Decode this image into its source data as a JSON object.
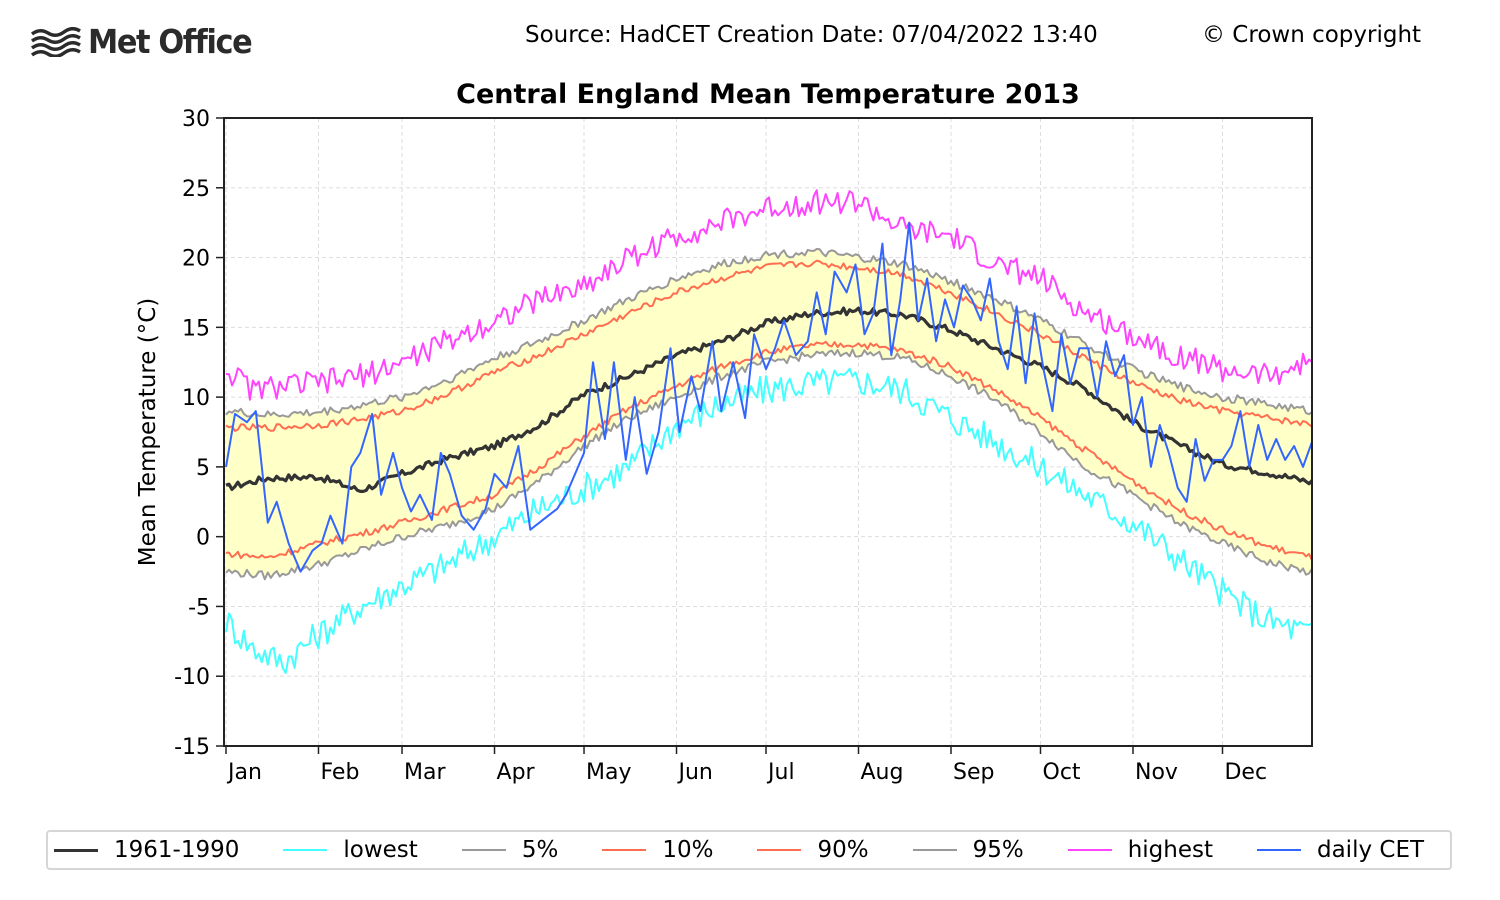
{
  "header": {
    "logo_text": "Met Office",
    "source_text": "Source: HadCET  Creation Date: 07/04/2022 13:40",
    "copyright_text": "© Crown copyright"
  },
  "chart_data": {
    "type": "line",
    "title": "Central England Mean Temperature 2013",
    "xlabel": "",
    "ylabel": "Mean Temperature (°C)",
    "ylim": [
      -15,
      30
    ],
    "xlim_day_of_year": [
      1,
      365
    ],
    "yticks": [
      30,
      25,
      20,
      15,
      10,
      5,
      0,
      -5,
      -10,
      -15
    ],
    "ytick_labels": [
      "30",
      "25",
      "20",
      "15",
      "10",
      "5",
      "0",
      "-5",
      "-10",
      "-15"
    ],
    "xtick_labels": [
      "Jan",
      "Feb",
      "Mar",
      "Apr",
      "May",
      "Jun",
      "Jul",
      "Aug",
      "Sep",
      "Oct",
      "Nov",
      "Dec"
    ],
    "xtick_days": [
      1,
      32,
      60,
      91,
      121,
      152,
      182,
      213,
      244,
      274,
      305,
      335
    ],
    "grid": true,
    "legend_position": "bottom",
    "shaded_band": {
      "between": [
        "5%",
        "95%"
      ],
      "color": "#ffffc8"
    },
    "series": [
      {
        "name": "1961-1990",
        "color": "#333333",
        "anchor_days": [
          1,
          15,
          32,
          46,
          60,
          75,
          91,
          106,
          121,
          136,
          152,
          167,
          182,
          197,
          213,
          228,
          244,
          259,
          274,
          289,
          305,
          320,
          335,
          350,
          365
        ],
        "values": [
          3.5,
          4.2,
          4.3,
          3.3,
          4.5,
          5.6,
          6.5,
          8.0,
          10.2,
          11.5,
          13.0,
          14.0,
          15.3,
          16.0,
          16.2,
          15.9,
          14.8,
          13.5,
          12.2,
          10.6,
          8.2,
          6.6,
          5.2,
          4.6,
          3.9
        ]
      },
      {
        "name": "lowest",
        "color": "#44ffff",
        "anchor_days": [
          1,
          10,
          20,
          32,
          46,
          60,
          75,
          91,
          106,
          121,
          136,
          152,
          167,
          182,
          197,
          213,
          228,
          244,
          259,
          274,
          289,
          305,
          320,
          335,
          350,
          365
        ],
        "values": [
          -6,
          -8,
          -9,
          -7,
          -5,
          -3.5,
          -2,
          0,
          2,
          3.5,
          5,
          8,
          9.5,
          10.5,
          11,
          11.2,
          10.5,
          8.5,
          6.8,
          5,
          3,
          1,
          -1.5,
          -4,
          -6,
          -7
        ]
      },
      {
        "name": "5%",
        "color": "#999999",
        "anchor_days": [
          1,
          15,
          32,
          46,
          60,
          75,
          91,
          106,
          121,
          136,
          152,
          167,
          182,
          197,
          213,
          228,
          244,
          259,
          274,
          289,
          305,
          320,
          335,
          350,
          365
        ],
        "values": [
          -2.5,
          -2.8,
          -2.0,
          -1.0,
          0.0,
          0.8,
          2.0,
          4.0,
          6.5,
          8.5,
          10.0,
          11.5,
          12.5,
          13.0,
          13.2,
          12.8,
          11.5,
          9.8,
          7.5,
          5.0,
          3.0,
          1.0,
          -0.5,
          -1.8,
          -2.6
        ]
      },
      {
        "name": "10%",
        "color": "#ff6e50",
        "anchor_days": [
          1,
          15,
          32,
          46,
          60,
          75,
          91,
          106,
          121,
          136,
          152,
          167,
          182,
          197,
          213,
          228,
          244,
          259,
          274,
          289,
          305,
          320,
          335,
          350,
          365
        ],
        "values": [
          -1.2,
          -1.5,
          -0.5,
          0.2,
          1.0,
          2.0,
          3.0,
          5.0,
          7.2,
          9.2,
          10.8,
          12.2,
          13.2,
          13.7,
          13.8,
          13.3,
          12.2,
          10.5,
          8.5,
          6.2,
          4.0,
          2.0,
          0.5,
          -0.7,
          -1.5
        ]
      },
      {
        "name": "90%",
        "color": "#ff6e50",
        "anchor_days": [
          1,
          15,
          32,
          46,
          60,
          75,
          91,
          106,
          121,
          136,
          152,
          167,
          182,
          197,
          213,
          228,
          244,
          259,
          274,
          289,
          305,
          320,
          335,
          350,
          365
        ],
        "values": [
          7.8,
          7.8,
          8.0,
          8.4,
          9.0,
          10.2,
          11.8,
          13.0,
          14.5,
          16.0,
          17.5,
          18.5,
          19.3,
          19.6,
          19.3,
          18.8,
          17.5,
          16.0,
          14.5,
          12.8,
          11.0,
          9.8,
          9.0,
          8.5,
          8.0
        ]
      },
      {
        "name": "95%",
        "color": "#999999",
        "anchor_days": [
          1,
          15,
          32,
          46,
          60,
          75,
          91,
          106,
          121,
          136,
          152,
          167,
          182,
          197,
          213,
          228,
          244,
          259,
          274,
          289,
          305,
          320,
          335,
          350,
          365
        ],
        "values": [
          9.0,
          8.7,
          8.9,
          9.4,
          10.0,
          11.2,
          12.8,
          14.0,
          15.5,
          17.0,
          18.5,
          19.5,
          20.2,
          20.4,
          20.0,
          19.5,
          18.3,
          17.0,
          15.5,
          13.8,
          12.0,
          10.8,
          10.0,
          9.5,
          9.0
        ]
      },
      {
        "name": "highest",
        "color": "#ff44ff",
        "anchor_days": [
          1,
          10,
          20,
          32,
          46,
          60,
          75,
          91,
          106,
          121,
          136,
          152,
          167,
          182,
          197,
          213,
          228,
          244,
          259,
          274,
          289,
          305,
          320,
          335,
          350,
          365
        ],
        "values": [
          12,
          10.5,
          10.8,
          11.0,
          11.5,
          12.5,
          14.0,
          15.5,
          17.0,
          18.0,
          20.0,
          21.5,
          22.5,
          23.5,
          24.0,
          24.0,
          22.0,
          21.5,
          19.5,
          18.5,
          16.0,
          14.5,
          13.0,
          12.0,
          11.5,
          12.5
        ]
      },
      {
        "name": "daily CET",
        "color": "#3366ff",
        "anchor_days": [
          1,
          4,
          8,
          11,
          15,
          18,
          22,
          26,
          30,
          33,
          36,
          40,
          43,
          46,
          50,
          53,
          57,
          60,
          63,
          66,
          70,
          73,
          76,
          80,
          84,
          88,
          91,
          95,
          99,
          103,
          106,
          109,
          112,
          115,
          118,
          121,
          124,
          128,
          131,
          135,
          138,
          142,
          146,
          150,
          153,
          157,
          160,
          164,
          167,
          171,
          175,
          178,
          182,
          185,
          188,
          192,
          196,
          199,
          202,
          205,
          209,
          212,
          215,
          218,
          221,
          224,
          227,
          230,
          233,
          236,
          239,
          242,
          245,
          248,
          251,
          254,
          257,
          260,
          263,
          266,
          269,
          272,
          275,
          278,
          281,
          284,
          287,
          290,
          293,
          296,
          299,
          302,
          305,
          308,
          311,
          314,
          317,
          320,
          323,
          326,
          329,
          332,
          335,
          338,
          341,
          344,
          347,
          350,
          353,
          356,
          359,
          362,
          365
        ],
        "values": [
          5,
          8.8,
          8.2,
          9.0,
          1.0,
          2.5,
          -0.5,
          -2.5,
          -1.0,
          -0.5,
          1.5,
          -0.5,
          5.0,
          6.0,
          8.8,
          3.0,
          6.0,
          3.5,
          1.8,
          3.0,
          1.2,
          6.0,
          4.5,
          1.5,
          0.5,
          2.0,
          4.5,
          3.5,
          6.5,
          0.5,
          1.0,
          1.5,
          2.0,
          3.0,
          4.5,
          6.0,
          12.5,
          7.0,
          12.5,
          5.5,
          10.0,
          4.5,
          7.5,
          13.5,
          7.5,
          11.5,
          9.0,
          14.0,
          9.0,
          12.5,
          8.5,
          14.5,
          12.0,
          13.5,
          15.5,
          13.0,
          14.0,
          17.5,
          14.5,
          19.0,
          17.5,
          19.5,
          14.5,
          16.0,
          21.0,
          13.0,
          17.0,
          22.5,
          15.5,
          18.5,
          14.0,
          17.0,
          15.0,
          18.0,
          17.0,
          15.5,
          18.5,
          14.0,
          12.0,
          16.5,
          11.0,
          16.0,
          12.0,
          9.0,
          14.5,
          11.0,
          13.5,
          13.5,
          10.0,
          14.0,
          11.5,
          13.0,
          8.0,
          10.0,
          5.0,
          8.0,
          6.0,
          3.5,
          2.5,
          7.0,
          4.0,
          5.5,
          5.5,
          6.5,
          9.0,
          5.0,
          8.0,
          5.5,
          7.0,
          5.5,
          6.5,
          5.0,
          6.8
        ]
      }
    ]
  },
  "legend": {
    "items": [
      {
        "label": "1961-1990",
        "color": "#333333"
      },
      {
        "label": "lowest",
        "color": "#44ffff"
      },
      {
        "label": "5%",
        "color": "#999999"
      },
      {
        "label": "10%",
        "color": "#ff6e50"
      },
      {
        "label": "90%",
        "color": "#ff6e50"
      },
      {
        "label": "95%",
        "color": "#999999"
      },
      {
        "label": "highest",
        "color": "#ff44ff"
      },
      {
        "label": "daily CET",
        "color": "#3366ff"
      }
    ]
  }
}
